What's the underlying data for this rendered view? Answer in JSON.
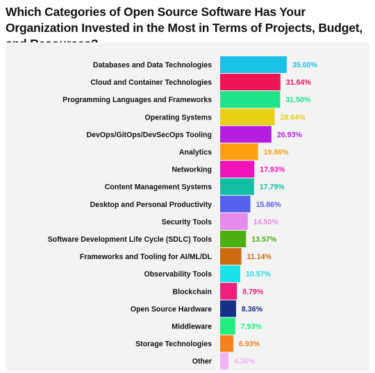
{
  "chart_data": {
    "type": "bar",
    "orientation": "horizontal",
    "title": "Which Categories of Open Source Software Has Your Organization Invested in the Most in Terms of Projects, Budget, and Resources?",
    "categories": [
      "Databases and Data Technologies",
      "Cloud and Container Technologies",
      "Programming Languages and Frameworks",
      "Operating Systems",
      "DevOps/GitOps/DevSecOps Tooling",
      "Analytics",
      "Networking",
      "Content Management Systems",
      "Desktop and Personal Productivity",
      "Security Tools",
      "Software Development Life Cycle (SDLC) Tools",
      "Frameworks and Tooling for AI/ML/DL",
      "Observability Tools",
      "Blockchain",
      "Open Source Hardware",
      "Middleware",
      "Storage Technologies",
      "Other"
    ],
    "values": [
      35.0,
      31.64,
      31.5,
      28.64,
      26.93,
      19.86,
      17.93,
      17.79,
      15.86,
      14.5,
      13.57,
      11.14,
      10.57,
      8.79,
      8.36,
      7.93,
      6.93,
      4.36
    ],
    "value_labels": [
      "35.00%",
      "31.64%",
      "31.50%",
      "28.64%",
      "26.93%",
      "19.86%",
      "17.93%",
      "17.79%",
      "15.86%",
      "14.50%",
      "13.57%",
      "11.14%",
      "10.57%",
      "8.79%",
      "8.36%",
      "7.93%",
      "6.93%",
      "4.36%"
    ],
    "colors": [
      "#1ac3e6",
      "#ee1458",
      "#1ee38a",
      "#e8d016",
      "#b41ee0",
      "#fba011",
      "#f014b8",
      "#12bfa4",
      "#5561ec",
      "#e68aec",
      "#4cae10",
      "#cc6b12",
      "#18e3e9",
      "#f01f7b",
      "#153186",
      "#1ef07e",
      "#f5821e",
      "#f3b2f4"
    ],
    "xlim": [
      0,
      35
    ],
    "unit": "%",
    "grid": false,
    "legend": "none"
  }
}
